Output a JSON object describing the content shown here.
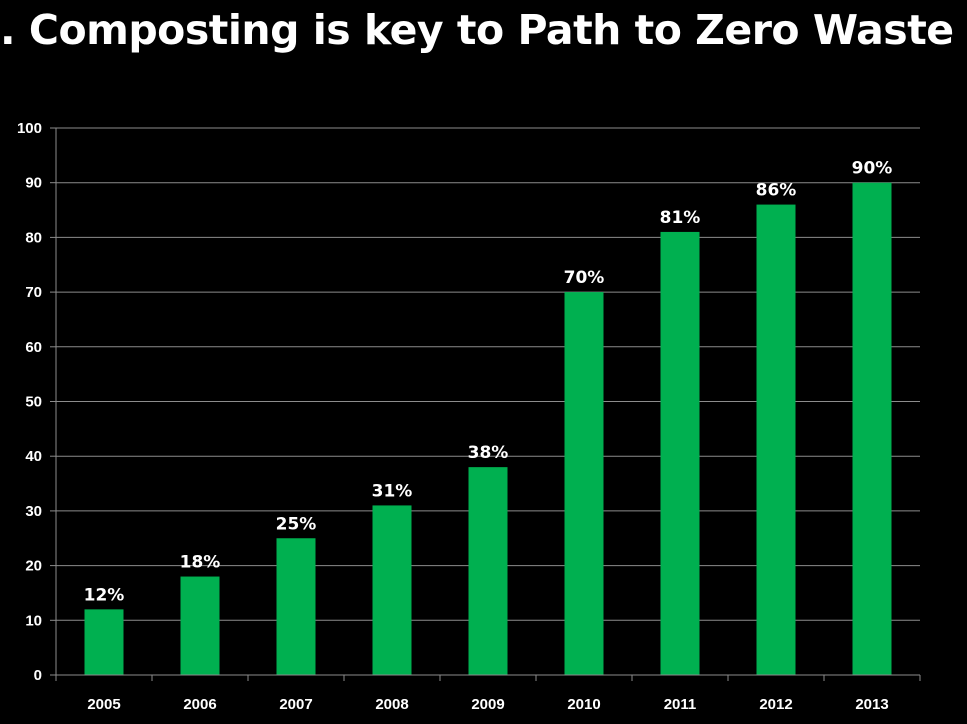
{
  "slide": {
    "title": ". Composting is key to Path to Zero Waste"
  },
  "colors": {
    "background": "#000000",
    "bar": "#00b050",
    "gridline": "#8c8c8c",
    "text": "#ffffff"
  },
  "chart_data": {
    "type": "bar",
    "categories": [
      "2005",
      "2006",
      "2007",
      "2008",
      "2009",
      "2010",
      "2011",
      "2012",
      "2013"
    ],
    "values": [
      12,
      18,
      25,
      31,
      38,
      70,
      81,
      86,
      90
    ],
    "data_labels": [
      "12%",
      "18%",
      "25%",
      "31%",
      "38%",
      "70%",
      "81%",
      "86%",
      "90%"
    ],
    "yticks": [
      "0",
      "10",
      "20",
      "30",
      "40",
      "50",
      "60",
      "70",
      "80",
      "90",
      "100"
    ],
    "ylim": [
      0,
      100
    ],
    "grid": true,
    "legend": "none"
  }
}
